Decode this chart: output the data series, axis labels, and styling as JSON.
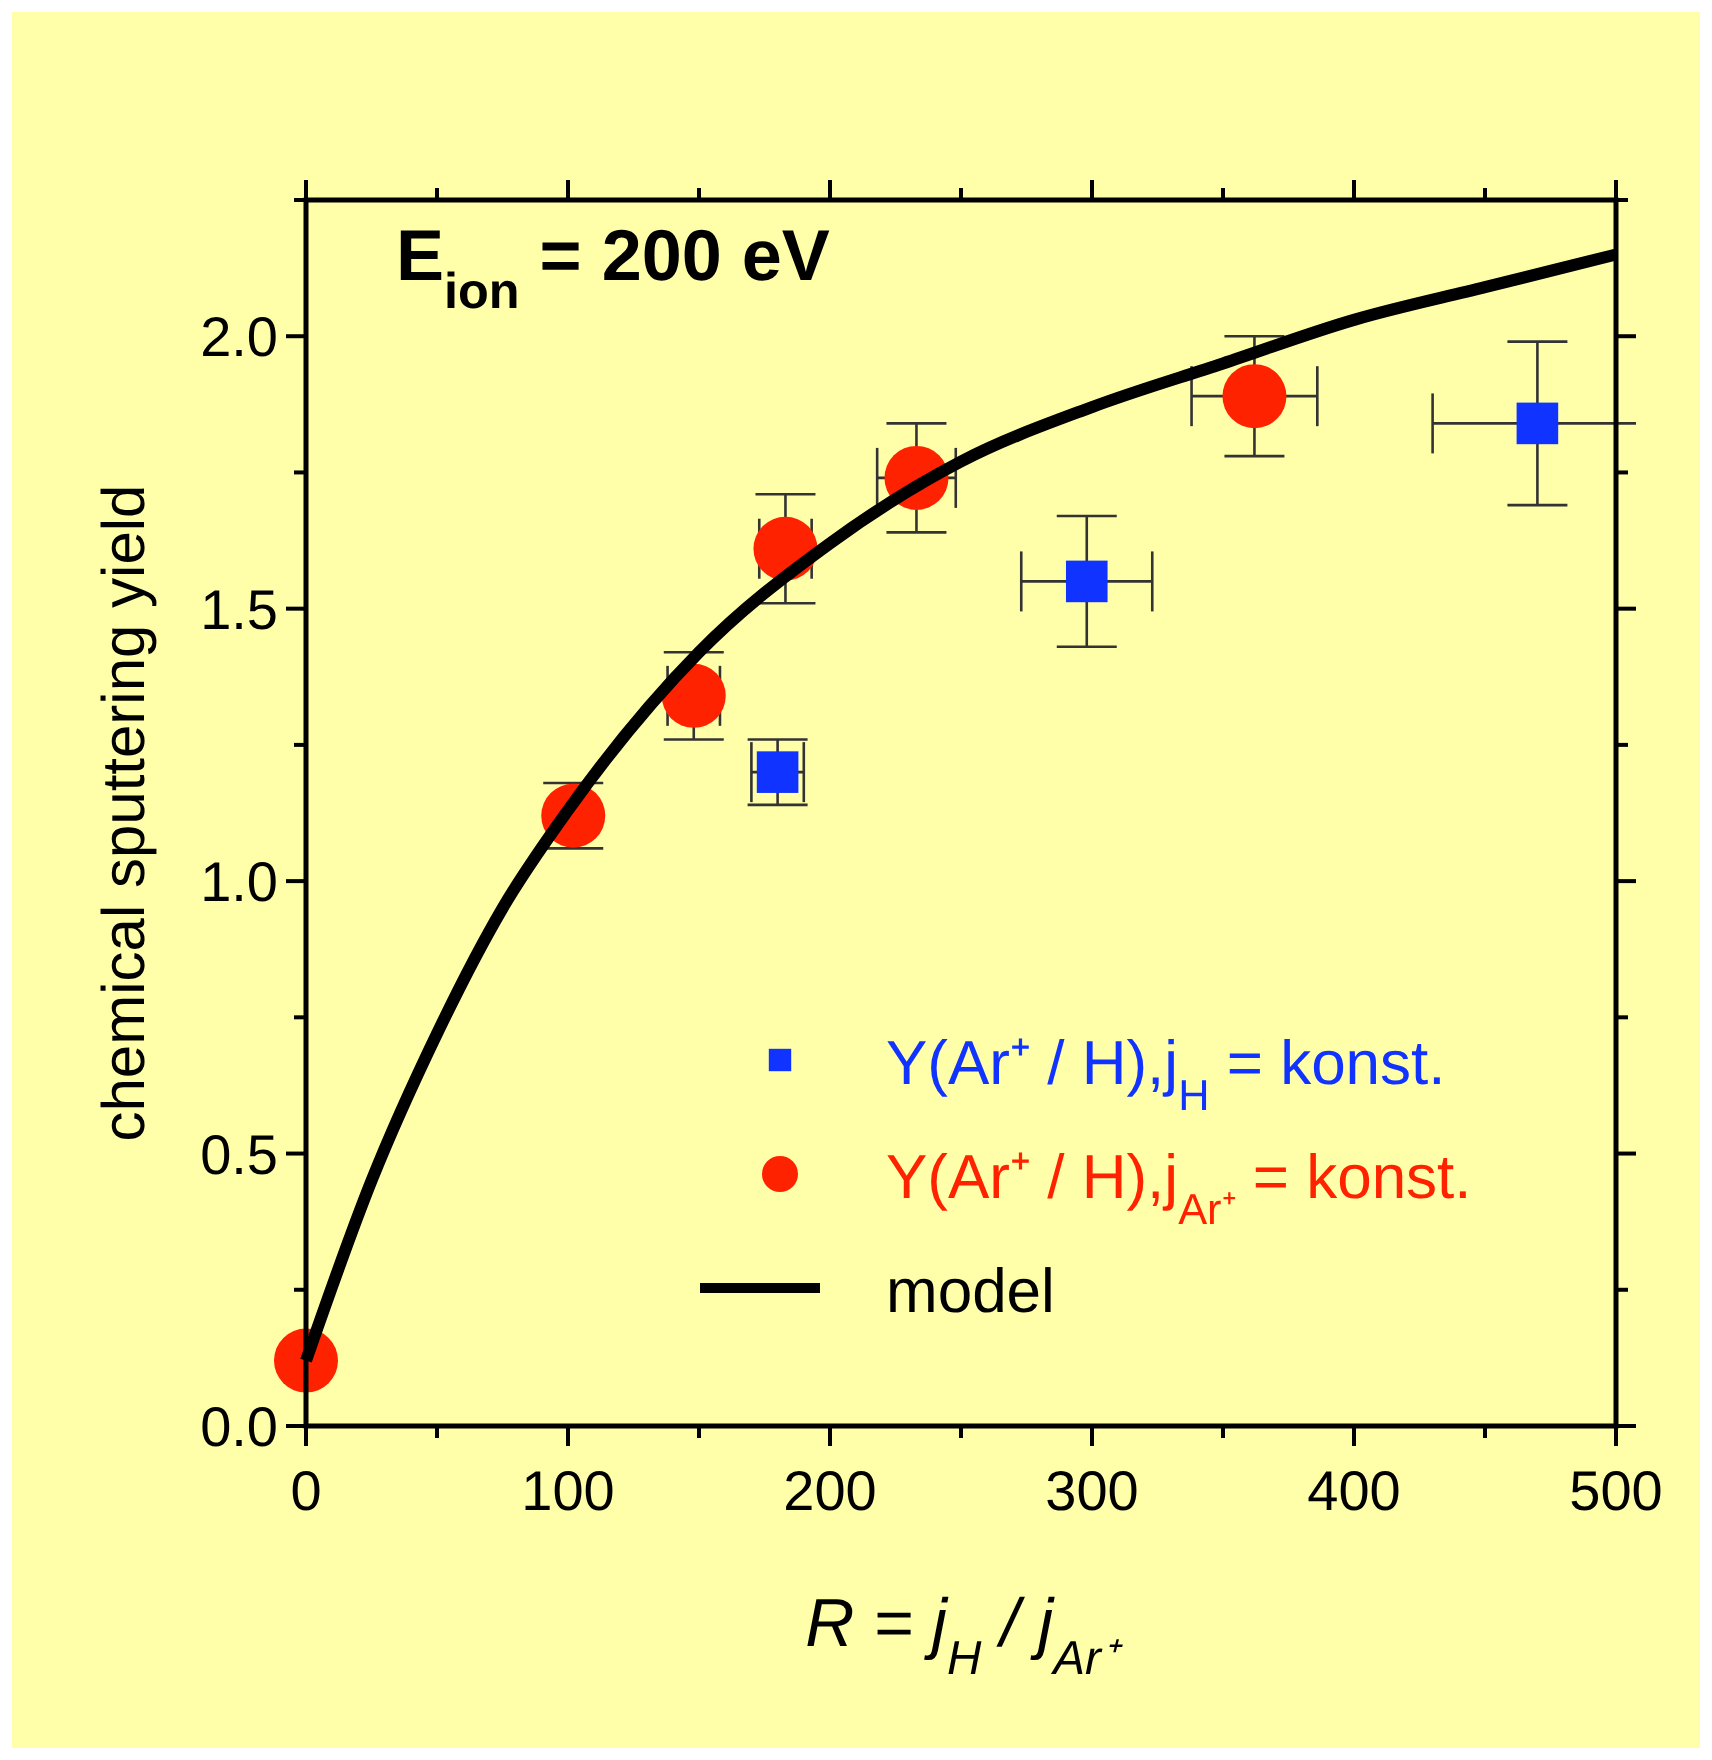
{
  "chart_data": {
    "type": "scatter",
    "xlabel": "R = j$_{H}$ / j$_{Ar⁺}$",
    "ylabel": "chemical sputtering yield",
    "annotations": [
      "E$_{ion}$ = 200 eV"
    ],
    "xlim": [
      0,
      500
    ],
    "xticks": [
      0,
      {
        "value": 50,
        "label": null
      },
      100,
      {
        "value": 150,
        "label": null
      },
      200,
      {
        "value": 250,
        "label": null
      },
      300,
      {
        "value": 350,
        "label": null
      },
      400,
      {
        "value": 450,
        "label": null
      },
      500
    ],
    "ylim": [
      0,
      2.25
    ],
    "yticks": [
      {
        "value": 0,
        "label": "0.0"
      },
      {
        "value": 0.25,
        "label": null
      },
      {
        "value": 0.5,
        "label": "0.5"
      },
      {
        "value": 0.75,
        "label": null
      },
      {
        "value": 1,
        "label": "1.0"
      },
      {
        "value": 1.25,
        "label": null
      },
      {
        "value": 1.5,
        "label": "1.5"
      },
      {
        "value": 1.75,
        "label": null
      },
      {
        "value": 2,
        "label": "2.0"
      },
      {
        "value": 2.25,
        "label": null
      }
    ],
    "legend": "bottom right",
    "series": [
      {
        "name": "Y(Ar⁺ / H),j$_{H}$ = konst.",
        "marker": "square",
        "color": "#1133ff",
        "x": [
          180,
          298,
          470
        ],
        "values": [
          1.2,
          1.55,
          1.84
        ],
        "errors": [
          0.06,
          0.12,
          0.15
        ],
        "xerrors": [
          10,
          25,
          40
        ]
      },
      {
        "name": "Y(Ar⁺ / H),j$_{Ar⁺}$ = konst.",
        "marker": "circle",
        "color": "#ff2200",
        "x": [
          0,
          102,
          148,
          183,
          233,
          362
        ],
        "values": [
          0.12,
          1.12,
          1.34,
          1.61,
          1.74,
          1.89
        ],
        "errors": [
          null,
          0.06,
          0.08,
          0.1,
          0.1,
          0.11
        ],
        "xerrors": [
          null,
          null,
          10,
          10,
          15,
          24
        ]
      },
      {
        "name": "model",
        "type": "line",
        "marker": "none",
        "line_style": "solid",
        "color": "#000000",
        "x": [
          0,
          25,
          50,
          75,
          100,
          150,
          200,
          250,
          300,
          350,
          400,
          450,
          500
        ],
        "values": [
          0.12,
          0.45,
          0.72,
          0.95,
          1.13,
          1.42,
          1.62,
          1.77,
          1.87,
          1.95,
          2.03,
          2.09,
          2.15
        ]
      }
    ]
  }
}
